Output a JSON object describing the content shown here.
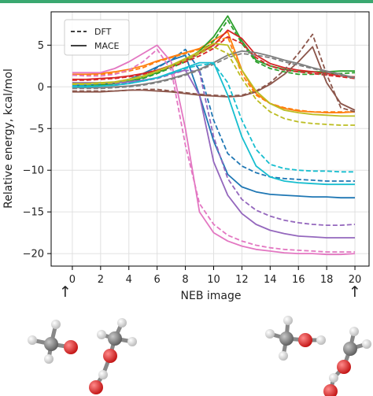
{
  "accent_bar_color": "#3aa870",
  "arrows": {
    "start": "↑",
    "end": "↑"
  },
  "molecules": [
    "methoxy-molecule-start",
    "methanol-dimer-start",
    "methoxy-molecule-end",
    "methanol-dimer-end"
  ],
  "chart_data": {
    "type": "line",
    "xlabel": "NEB image",
    "ylabel": "Relative energy, kcal/mol",
    "xlim": [
      -1.5,
      21
    ],
    "ylim": [
      -21.5,
      9
    ],
    "xticks": [
      0,
      2,
      4,
      6,
      8,
      10,
      12,
      14,
      16,
      18,
      20
    ],
    "yticks": [
      -20,
      -15,
      -10,
      -5,
      0,
      5
    ],
    "grid": true,
    "legend": {
      "placement": "top-left",
      "entries": [
        {
          "label": "DFT",
          "style": "dashed"
        },
        {
          "label": "MACE",
          "style": "solid"
        }
      ]
    },
    "x": [
      0,
      1,
      2,
      3,
      4,
      5,
      6,
      7,
      8,
      9,
      10,
      11,
      12,
      13,
      14,
      15,
      16,
      17,
      18,
      19,
      20
    ],
    "series": [
      {
        "color": "#1f77b4",
        "dft": [
          0.3,
          0.2,
          0.2,
          0.3,
          0.5,
          1.2,
          2.3,
          3.2,
          4.5,
          2.0,
          -4.0,
          -8.0,
          -9.5,
          -10.3,
          -10.8,
          -11.0,
          -11.1,
          -11.2,
          -11.3,
          -11.3,
          -11.3
        ],
        "mace": [
          0.2,
          0.2,
          0.3,
          0.5,
          0.9,
          1.6,
          2.4,
          3.2,
          3.8,
          -1.0,
          -6.5,
          -10.5,
          -12.0,
          -12.6,
          -12.9,
          -13.0,
          -13.1,
          -13.2,
          -13.2,
          -13.3,
          -13.3
        ]
      },
      {
        "color": "#ff7f0e",
        "dft": [
          1.4,
          1.4,
          1.5,
          1.6,
          1.9,
          2.3,
          3.0,
          3.5,
          4.0,
          4.5,
          5.2,
          6.0,
          1.5,
          -1.0,
          -2.0,
          -2.5,
          -2.8,
          -3.0,
          -3.0,
          -3.0,
          -3.0
        ],
        "mace": [
          1.5,
          1.5,
          1.6,
          1.8,
          2.1,
          2.5,
          3.1,
          3.6,
          4.1,
          4.6,
          5.6,
          6.6,
          2.0,
          -0.8,
          -2.0,
          -2.6,
          -2.9,
          -3.0,
          -3.1,
          -3.1,
          -3.0
        ]
      },
      {
        "color": "#2ca02c",
        "dft": [
          0.0,
          0.0,
          0.1,
          0.3,
          0.6,
          1.0,
          1.6,
          2.3,
          3.0,
          4.0,
          5.5,
          8.0,
          5.2,
          3.0,
          2.2,
          1.8,
          1.5,
          1.5,
          1.6,
          1.6,
          1.7
        ],
        "mace": [
          0.0,
          0.1,
          0.2,
          0.4,
          0.7,
          1.1,
          1.7,
          2.4,
          3.2,
          4.3,
          6.0,
          8.5,
          5.5,
          3.2,
          2.5,
          2.1,
          1.8,
          1.8,
          1.8,
          1.9,
          1.9
        ]
      },
      {
        "color": "#d62728",
        "dft": [
          0.8,
          0.8,
          0.9,
          1.0,
          1.2,
          1.5,
          1.9,
          2.4,
          3.0,
          3.7,
          4.6,
          6.0,
          5.2,
          3.5,
          2.5,
          2.0,
          1.8,
          1.6,
          1.4,
          1.2,
          1.0
        ],
        "mace": [
          0.9,
          0.9,
          1.0,
          1.1,
          1.3,
          1.6,
          2.0,
          2.6,
          3.2,
          4.0,
          5.0,
          6.8,
          5.8,
          3.8,
          2.8,
          2.3,
          2.0,
          1.8,
          1.6,
          1.3,
          1.2
        ]
      },
      {
        "color": "#9467bd",
        "dft": [
          0.5,
          0.4,
          0.4,
          0.4,
          0.5,
          0.7,
          1.0,
          1.5,
          2.0,
          1.8,
          -6.0,
          -11.0,
          -13.5,
          -14.8,
          -15.5,
          -16.0,
          -16.3,
          -16.5,
          -16.6,
          -16.6,
          -16.5
        ],
        "mace": [
          0.5,
          0.5,
          0.5,
          0.5,
          0.6,
          0.8,
          1.1,
          1.6,
          2.0,
          -1.0,
          -9.0,
          -13.0,
          -15.2,
          -16.5,
          -17.2,
          -17.6,
          -17.9,
          -18.0,
          -18.1,
          -18.1,
          -18.1
        ]
      },
      {
        "color": "#8c564b",
        "dft": [
          -0.5,
          -0.5,
          -0.5,
          -0.5,
          -0.4,
          -0.3,
          -0.3,
          -0.5,
          -0.7,
          -0.9,
          -1.0,
          -1.1,
          -1.0,
          -0.5,
          0.5,
          2.0,
          4.0,
          6.3,
          1.5,
          -2.5,
          -3.0
        ],
        "mace": [
          -0.6,
          -0.6,
          -0.6,
          -0.5,
          -0.4,
          -0.4,
          -0.5,
          -0.6,
          -0.8,
          -1.0,
          -1.1,
          -1.2,
          -1.1,
          -0.6,
          0.3,
          1.5,
          3.0,
          4.8,
          0.5,
          -2.0,
          -2.8
        ]
      },
      {
        "color": "#e377c2",
        "dft": [
          1.4,
          1.3,
          1.3,
          1.5,
          2.0,
          3.0,
          4.5,
          2.0,
          -7.0,
          -14.0,
          -16.5,
          -17.8,
          -18.5,
          -19.0,
          -19.3,
          -19.5,
          -19.6,
          -19.7,
          -19.8,
          -19.8,
          -19.8
        ],
        "mace": [
          1.7,
          1.7,
          1.7,
          2.2,
          3.0,
          4.0,
          5.0,
          3.0,
          -5.0,
          -15.0,
          -17.5,
          -18.5,
          -19.1,
          -19.5,
          -19.7,
          -19.9,
          -20.0,
          -20.0,
          -20.1,
          -20.1,
          -20.0
        ]
      },
      {
        "color": "#7f7f7f",
        "dft": [
          -0.2,
          -0.2,
          -0.2,
          -0.1,
          0.0,
          0.2,
          0.5,
          0.9,
          1.4,
          2.0,
          2.7,
          3.5,
          4.0,
          3.8,
          3.5,
          3.0,
          2.6,
          2.2,
          1.8,
          1.4,
          1.0
        ],
        "mace": [
          -0.1,
          -0.1,
          -0.1,
          0.0,
          0.1,
          0.3,
          0.6,
          1.0,
          1.5,
          2.1,
          2.9,
          3.8,
          4.3,
          4.1,
          3.7,
          3.2,
          2.8,
          2.3,
          1.9,
          1.5,
          1.1
        ]
      },
      {
        "color": "#bcbd22",
        "dft": [
          0.3,
          0.3,
          0.4,
          0.5,
          0.8,
          1.2,
          1.8,
          2.5,
          3.2,
          4.0,
          4.8,
          4.0,
          1.0,
          -1.5,
          -3.0,
          -3.8,
          -4.2,
          -4.4,
          -4.5,
          -4.6,
          -4.6
        ],
        "mace": [
          0.4,
          0.4,
          0.5,
          0.6,
          0.9,
          1.3,
          1.9,
          2.6,
          3.4,
          4.2,
          5.2,
          5.0,
          2.0,
          -0.5,
          -2.0,
          -2.8,
          -3.1,
          -3.3,
          -3.4,
          -3.5,
          -3.5
        ]
      },
      {
        "color": "#17becf",
        "dft": [
          0.1,
          0.1,
          0.1,
          0.2,
          0.4,
          0.7,
          1.1,
          1.6,
          2.2,
          2.6,
          2.8,
          0.5,
          -4.0,
          -7.5,
          -9.3,
          -9.8,
          -10.0,
          -10.1,
          -10.1,
          -10.2,
          -10.2
        ],
        "mace": [
          0.0,
          0.0,
          0.1,
          0.2,
          0.4,
          0.7,
          1.1,
          1.7,
          2.3,
          2.9,
          2.9,
          -1.0,
          -6.0,
          -9.5,
          -10.8,
          -11.3,
          -11.5,
          -11.6,
          -11.7,
          -11.7,
          -11.7
        ]
      }
    ]
  }
}
